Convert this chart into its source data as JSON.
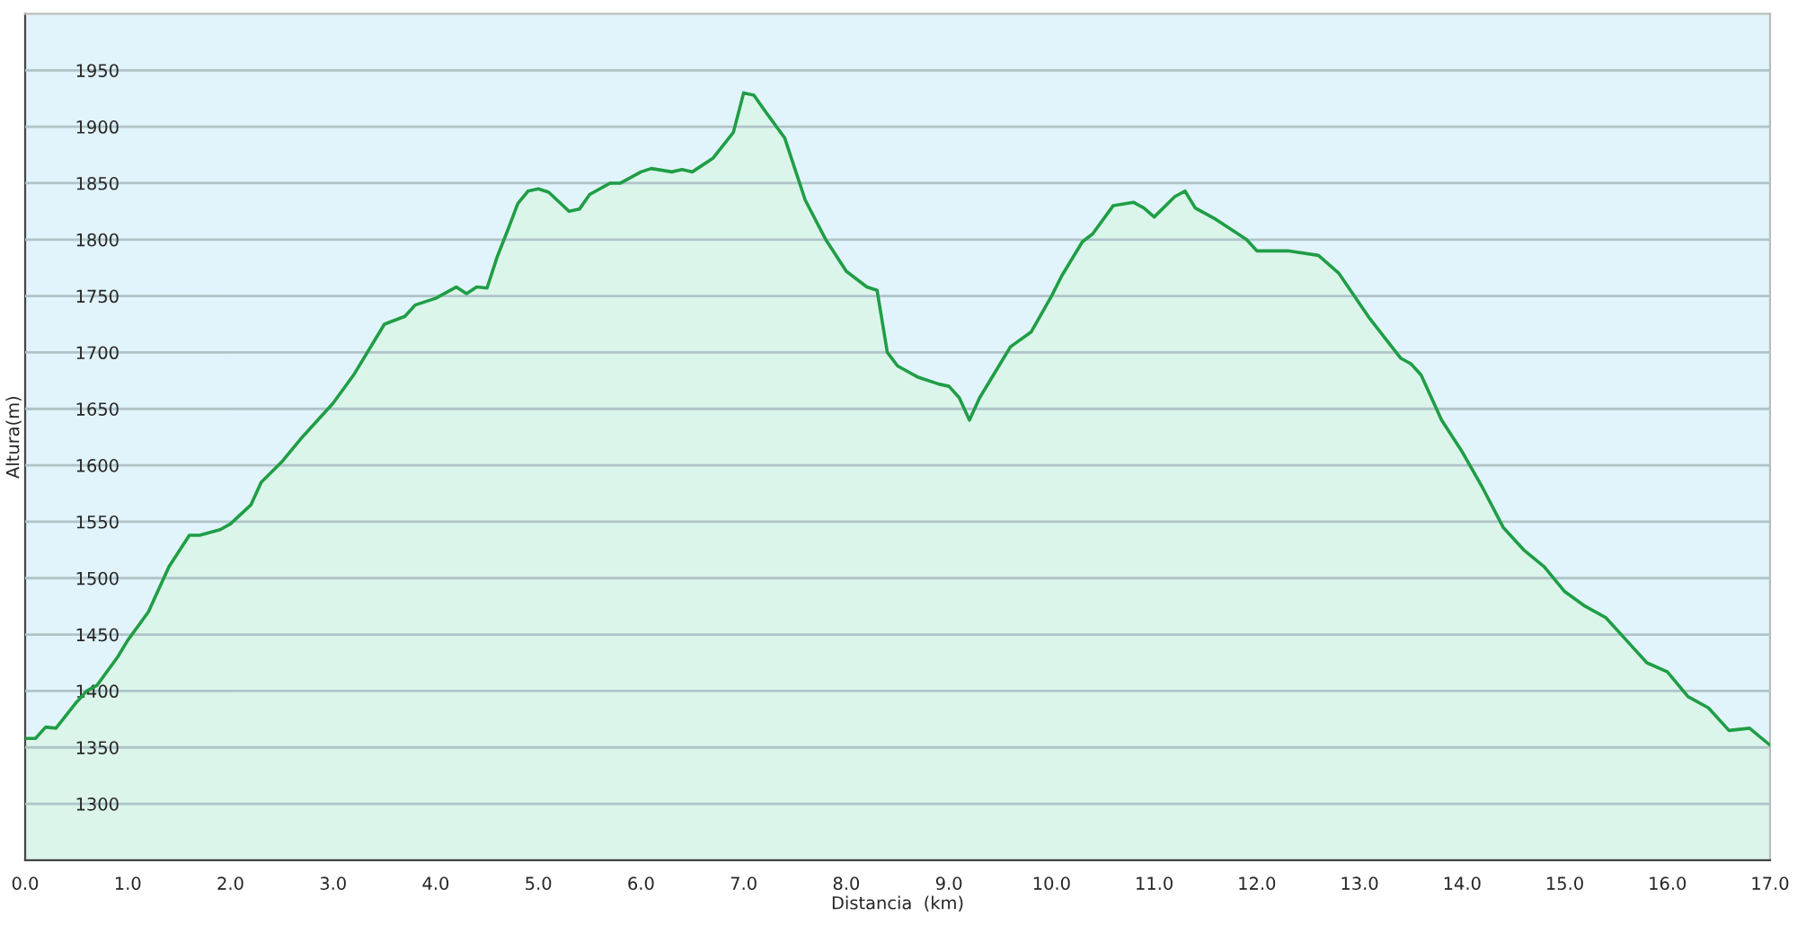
{
  "chart_data": {
    "type": "area",
    "xlabel": "Distancia  (km)",
    "ylabel": "Altura(m)",
    "x": [
      0.0,
      0.1,
      0.2,
      0.3,
      0.5,
      0.6,
      0.7,
      0.9,
      1.0,
      1.2,
      1.4,
      1.6,
      1.7,
      1.9,
      2.0,
      2.2,
      2.3,
      2.5,
      2.7,
      3.0,
      3.2,
      3.5,
      3.7,
      3.8,
      4.0,
      4.2,
      4.3,
      4.4,
      4.5,
      4.6,
      4.7,
      4.8,
      4.9,
      5.0,
      5.1,
      5.3,
      5.4,
      5.5,
      5.7,
      5.8,
      6.0,
      6.1,
      6.3,
      6.4,
      6.5,
      6.7,
      6.9,
      7.0,
      7.1,
      7.2,
      7.4,
      7.6,
      7.8,
      8.0,
      8.2,
      8.3,
      8.4,
      8.5,
      8.7,
      8.9,
      9.0,
      9.1,
      9.2,
      9.3,
      9.5,
      9.6,
      9.8,
      10.0,
      10.1,
      10.3,
      10.4,
      10.6,
      10.8,
      10.9,
      11.0,
      11.2,
      11.3,
      11.4,
      11.6,
      11.9,
      12.0,
      12.3,
      12.6,
      12.8,
      13.1,
      13.4,
      13.5,
      13.6,
      13.8,
      14.0,
      14.2,
      14.4,
      14.6,
      14.8,
      15.0,
      15.2,
      15.4,
      15.6,
      15.8,
      16.0,
      16.2,
      16.4,
      16.6,
      16.8,
      17.0
    ],
    "series": [
      {
        "color": "#1f9e45",
        "values": [
          1358,
          1358,
          1368,
          1367,
          1390,
          1400,
          1405,
          1430,
          1445,
          1470,
          1510,
          1538,
          1538,
          1543,
          1548,
          1565,
          1585,
          1603,
          1625,
          1655,
          1680,
          1725,
          1732,
          1742,
          1748,
          1758,
          1752,
          1758,
          1757,
          1785,
          1808,
          1832,
          1843,
          1845,
          1842,
          1825,
          1827,
          1840,
          1850,
          1850,
          1860,
          1863,
          1860,
          1862,
          1860,
          1872,
          1895,
          1930,
          1928,
          1915,
          1890,
          1835,
          1800,
          1772,
          1758,
          1755,
          1700,
          1688,
          1678,
          1672,
          1670,
          1660,
          1640,
          1660,
          1690,
          1705,
          1718,
          1750,
          1768,
          1798,
          1805,
          1830,
          1833,
          1828,
          1820,
          1838,
          1843,
          1828,
          1818,
          1800,
          1790,
          1790,
          1786,
          1770,
          1730,
          1695,
          1690,
          1680,
          1640,
          1612,
          1580,
          1545,
          1525,
          1510,
          1488,
          1475,
          1465,
          1445,
          1425,
          1417,
          1395,
          1385,
          1365,
          1367,
          1352
        ]
      }
    ],
    "xlim": [
      0,
      17
    ],
    "ylim": [
      1250,
      2000
    ],
    "xticks": [
      {
        "value": 0,
        "label": "0.0"
      },
      {
        "value": 1,
        "label": "1.0"
      },
      {
        "value": 2,
        "label": "2.0"
      },
      {
        "value": 3,
        "label": "3.0"
      },
      {
        "value": 4,
        "label": "4.0"
      },
      {
        "value": 5,
        "label": "5.0"
      },
      {
        "value": 6,
        "label": "6.0"
      },
      {
        "value": 7,
        "label": "7.0"
      },
      {
        "value": 8,
        "label": "8.0"
      },
      {
        "value": 9,
        "label": "9.0"
      },
      {
        "value": 10,
        "label": "10.0"
      },
      {
        "value": 11,
        "label": "11.0"
      },
      {
        "value": 12,
        "label": "12.0"
      },
      {
        "value": 13,
        "label": "13.0"
      },
      {
        "value": 14,
        "label": "14.0"
      },
      {
        "value": 15,
        "label": "15.0"
      },
      {
        "value": 16,
        "label": "16.0"
      },
      {
        "value": 17,
        "label": "17.0"
      }
    ],
    "yticks": [
      1300,
      1350,
      1400,
      1450,
      1500,
      1550,
      1600,
      1650,
      1700,
      1750,
      1800,
      1850,
      1900,
      1950
    ],
    "grid": "y",
    "legend": false
  }
}
